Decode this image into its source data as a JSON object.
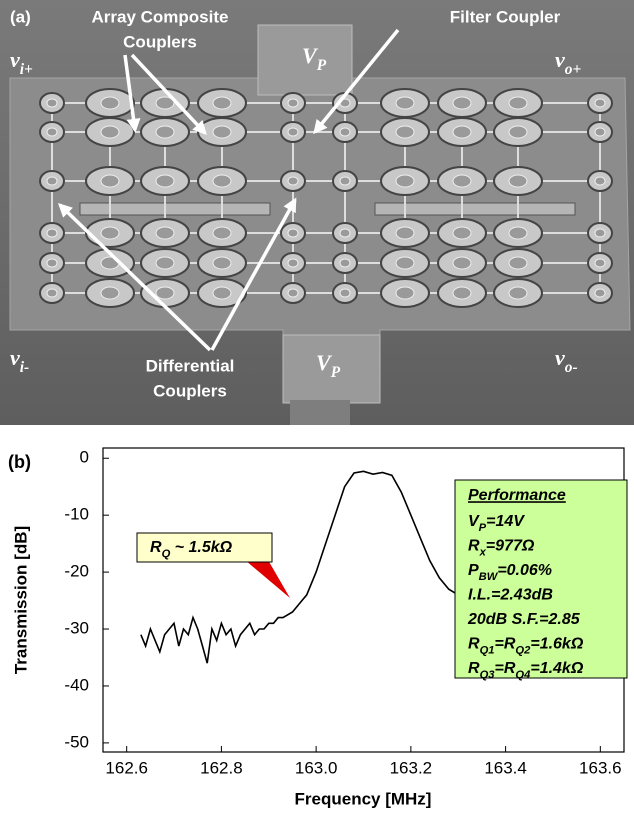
{
  "panel_a": {
    "label": "(a)",
    "array_label": [
      "Array Composite",
      "Couplers"
    ],
    "filter_label": "Filter Coupler",
    "differential_label": [
      "Differential",
      "Couplers"
    ],
    "port_in_plus": [
      {
        "text": "v"
      },
      {
        "sub": "i+"
      }
    ],
    "port_out_plus": [
      {
        "text": "v"
      },
      {
        "sub": "o+"
      }
    ],
    "port_in_minus": [
      {
        "text": "v"
      },
      {
        "sub": "i-"
      }
    ],
    "port_out_minus": [
      {
        "text": "v"
      },
      {
        "sub": "o-"
      }
    ],
    "pad_top": [
      {
        "text": "V"
      },
      {
        "sub": "P"
      }
    ],
    "pad_bottom": [
      {
        "text": "V"
      },
      {
        "sub": "P"
      }
    ]
  },
  "chart_data": {
    "type": "line",
    "panel_label": "(b)",
    "x_label": "Frequency [MHz]",
    "y_label": "Transmission [dB]",
    "xlim": [
      162.55,
      163.65
    ],
    "ylim": [
      -51.6,
      1.8
    ],
    "xticks": [
      162.6,
      162.8,
      {
        "value": 163.0,
        "label": "163.0"
      },
      163.2,
      163.4,
      163.6
    ],
    "yticks": [
      0,
      -10,
      -20,
      -30,
      -40,
      -50
    ],
    "x": [
      162.63,
      162.64,
      162.65,
      162.66,
      162.67,
      162.68,
      162.69,
      162.7,
      162.71,
      162.72,
      162.73,
      162.74,
      162.75,
      162.76,
      162.77,
      162.78,
      162.79,
      162.8,
      162.81,
      162.82,
      162.83,
      162.84,
      162.85,
      162.86,
      162.87,
      162.88,
      162.89,
      162.9,
      162.91,
      162.92,
      162.93,
      162.95,
      162.97,
      162.98,
      163.0,
      163.02,
      163.04,
      163.06,
      163.08,
      163.1,
      163.12,
      163.14,
      163.16,
      163.18,
      163.2,
      163.22,
      163.24,
      163.26,
      163.28,
      163.3,
      163.32
    ],
    "series": [
      {
        "color": "#000000",
        "values": [
          -31,
          -33,
          -30,
          -32,
          -34,
          -31,
          -30,
          -29,
          -33,
          -30,
          -31,
          -28,
          -30,
          -33,
          -36,
          -30,
          -32,
          -29,
          -31,
          -30,
          -33,
          -31,
          -30,
          -29,
          -31,
          -30,
          -30,
          -29,
          -29,
          -28,
          -28,
          -27,
          -25,
          -24,
          -20,
          -15,
          -10,
          -5,
          -2.6,
          -2.3,
          -2.8,
          -2.5,
          -3,
          -6,
          -10,
          -14,
          -18,
          -21,
          -23,
          -24,
          -25
        ]
      }
    ],
    "annotation": [
      {
        "text": "R"
      },
      {
        "sub": "Q"
      },
      {
        "text": " ~ 1.5kΩ"
      }
    ],
    "performance": {
      "title": "Performance",
      "lines": [
        [
          {
            "text": "V"
          },
          {
            "sub": "P"
          },
          {
            "text": "=14V"
          }
        ],
        [
          {
            "text": "R"
          },
          {
            "sub": "x"
          },
          {
            "text": "=977Ω"
          }
        ],
        [
          {
            "text": "P"
          },
          {
            "sub": "BW"
          },
          {
            "text": "=0.06%"
          }
        ],
        [
          {
            "text": "I.L.=2.43dB"
          }
        ],
        [
          {
            "text": "20dB S.F.=2.85"
          }
        ],
        [
          {
            "text": "R"
          },
          {
            "sub": "Q1"
          },
          {
            "text": "=R"
          },
          {
            "sub": "Q2"
          },
          {
            "text": "=1.6kΩ"
          }
        ],
        [
          {
            "text": "R"
          },
          {
            "sub": "Q3"
          },
          {
            "text": "=R"
          },
          {
            "sub": "Q4"
          },
          {
            "text": "=1.4kΩ"
          }
        ]
      ]
    }
  }
}
